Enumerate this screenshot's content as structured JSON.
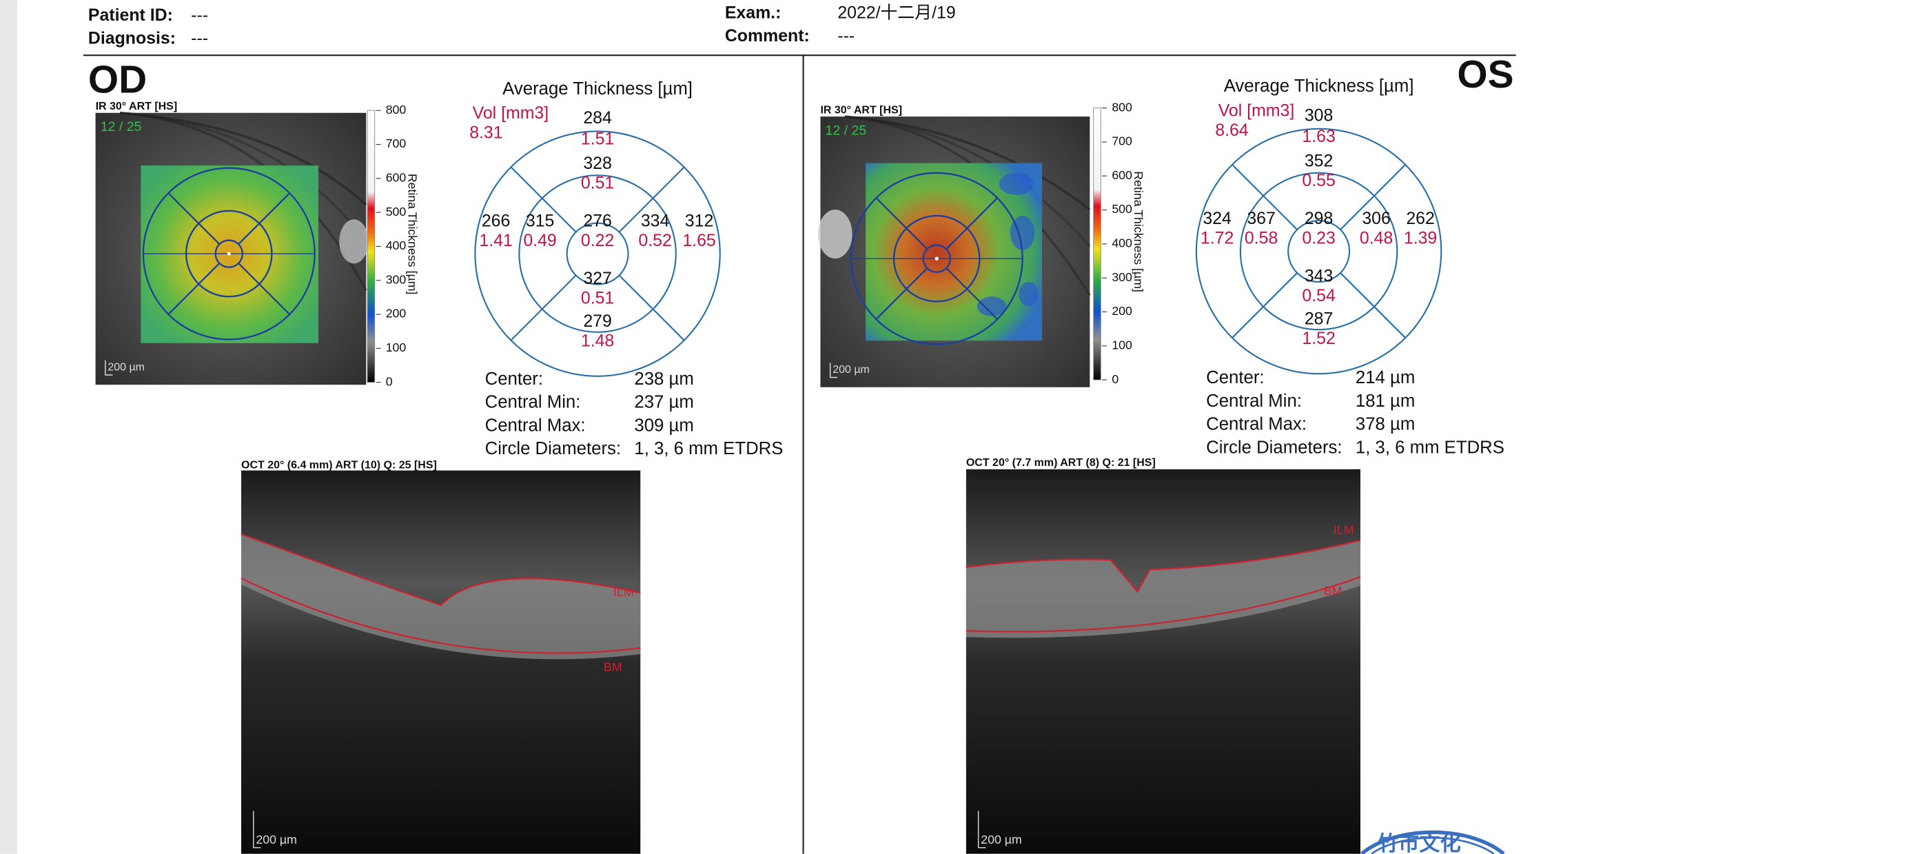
{
  "header": {
    "patient_id_label": "Patient ID:",
    "patient_id": "---",
    "diagnosis_label": "Diagnosis:",
    "diagnosis": "---",
    "exam_label": "Exam.:",
    "exam": "2022/十二月/19",
    "comment_label": "Comment:",
    "comment": "---"
  },
  "eyes": [
    {
      "eye": "OD",
      "ir_label": "IR 30° ART [HS]",
      "quality": "12 / 25",
      "scale_bar": "200 µm",
      "colorbar_ticks": [
        "800",
        "700",
        "600",
        "500",
        "400",
        "300",
        "200",
        "100",
        "0"
      ],
      "colorbar_label": "Retina Thickness [µm]",
      "map_title": "Average Thickness [µm]",
      "vol_label": "Vol [mm3]",
      "vol_total": "8.31",
      "sectors": [
        {
          "thickness": "284",
          "volume": "1.51"
        },
        {
          "thickness": "328",
          "volume": "0.51"
        },
        {
          "thickness": "266",
          "volume": "1.41"
        },
        {
          "thickness": "315",
          "volume": "0.49"
        },
        {
          "thickness": "276",
          "volume": "0.22"
        },
        {
          "thickness": "334",
          "volume": "0.52"
        },
        {
          "thickness": "312",
          "volume": "1.65"
        },
        {
          "thickness": "327",
          "volume": "0.51"
        },
        {
          "thickness": "279",
          "volume": "1.48"
        }
      ],
      "stats": [
        {
          "label": "Center:",
          "value": "238 µm"
        },
        {
          "label": "Central Min:",
          "value": "237 µm"
        },
        {
          "label": "Central Max:",
          "value": "309 µm"
        },
        {
          "label": "Circle Diameters:",
          "value": "1, 3, 6 mm ETDRS"
        }
      ],
      "oct_label": "OCT 20° (6.4 mm) ART (10) Q: 25 [HS]",
      "ilm": "ILM",
      "bm": "BM",
      "oct_scale_bar": "200 µm"
    },
    {
      "eye": "OS",
      "ir_label": "IR 30° ART [HS]",
      "quality": "12 / 25",
      "scale_bar": "200 µm",
      "colorbar_ticks": [
        "800",
        "700",
        "600",
        "500",
        "400",
        "300",
        "200",
        "100",
        "0"
      ],
      "colorbar_label": "Retina Thickness [µm]",
      "map_title": "Average Thickness [µm]",
      "vol_label": "Vol [mm3]",
      "vol_total": "8.64",
      "sectors": [
        {
          "thickness": "308",
          "volume": "1.63"
        },
        {
          "thickness": "352",
          "volume": "0.55"
        },
        {
          "thickness": "324",
          "volume": "1.72"
        },
        {
          "thickness": "367",
          "volume": "0.58"
        },
        {
          "thickness": "298",
          "volume": "0.23"
        },
        {
          "thickness": "306",
          "volume": "0.48"
        },
        {
          "thickness": "262",
          "volume": "1.39"
        },
        {
          "thickness": "343",
          "volume": "0.54"
        },
        {
          "thickness": "287",
          "volume": "1.52"
        }
      ],
      "stats": [
        {
          "label": "Center:",
          "value": "214 µm"
        },
        {
          "label": "Central Min:",
          "value": "181 µm"
        },
        {
          "label": "Central Max:",
          "value": "378 µm"
        },
        {
          "label": "Circle Diameters:",
          "value": "1, 3, 6 mm ETDRS"
        }
      ],
      "oct_label": "OCT 20° (7.7 mm) ART (8) Q: 21 [HS]",
      "ilm": "ILM",
      "bm": "BM",
      "oct_scale_bar": "200 µm"
    }
  ],
  "stamp": "竹市文化"
}
